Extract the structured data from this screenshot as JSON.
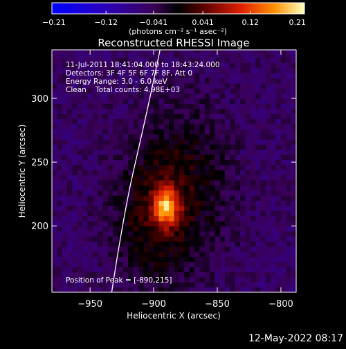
{
  "chart_data": {
    "type": "heatmap",
    "title": "Reconstructed RHESSI Image",
    "xlabel": "Heliocentric X (arcsec)",
    "ylabel": "Heliocentric Y (arcsec)",
    "xlim": [
      -980,
      -788
    ],
    "ylim": [
      148,
      338
    ],
    "x_ticks": [
      -950,
      -900,
      -850,
      -800
    ],
    "y_ticks": [
      200,
      250,
      300
    ],
    "x_tick_labels": [
      "−950",
      "−900",
      "−850",
      "−800"
    ],
    "y_tick_labels": [
      "200",
      "250",
      "300"
    ],
    "colorbar": {
      "label": "(photons cm⁻² s⁻¹ asec⁻²)",
      "range": [
        -0.21,
        0.21
      ],
      "ticks": [
        -0.21,
        -0.12,
        -0.041,
        0.041,
        0.12,
        0.21
      ],
      "tick_labels": [
        "−0.21",
        "−0.12",
        "−0.041",
        "0.041",
        "0.12",
        "0.21"
      ]
    },
    "annotations": [
      "11-Jul-2011 18:41:04.000 to 18:43:24.000",
      "Detectors: 3F 4F 5F 6F 7F 8F, Att 0",
      "Energy Range: 3.0 - 6.0 keV",
      "Clean    Total counts: 4.98E+03"
    ],
    "peak_label": "Position of Peak = [-890,215]",
    "peak": {
      "x": -890,
      "y": 215,
      "value": 0.21
    },
    "sources": [
      {
        "x": -890,
        "y": 215,
        "sx": 7,
        "sy": 10,
        "amp": 0.16
      },
      {
        "x": -878,
        "y": 232,
        "sx": 26,
        "sy": 42,
        "amp": 0.06
      },
      {
        "x": -905,
        "y": 200,
        "sx": 20,
        "sy": 35,
        "amp": 0.045
      }
    ],
    "background": -0.05,
    "limb": [
      [
        -933,
        148
      ],
      [
        -928,
        180
      ],
      [
        -920,
        225
      ],
      [
        -912,
        260
      ],
      [
        -903,
        300
      ],
      [
        -895,
        338
      ]
    ]
  },
  "timestamp": "12-May-2022 08:17"
}
